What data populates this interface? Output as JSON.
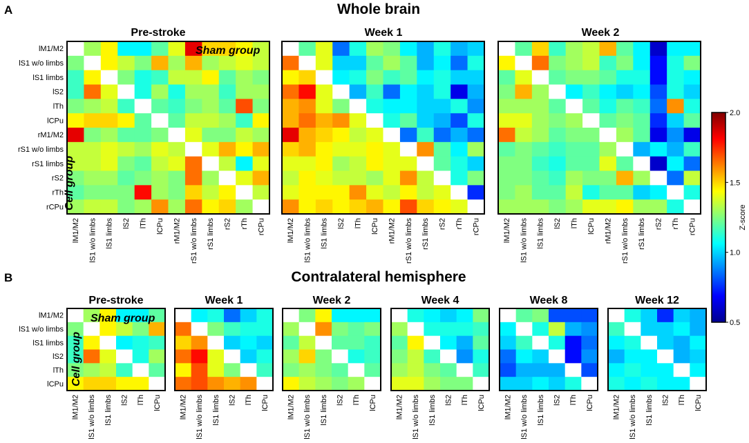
{
  "chart_data": {
    "type": "heatmap",
    "colorbar": {
      "label": "Z-score",
      "min": 0.5,
      "max": 2.0,
      "ticks": [
        "2.0",
        "1.5",
        "1.0",
        "0.5"
      ]
    },
    "panel_a": {
      "letter": "A",
      "title": "Whole brain",
      "row_labels": [
        "lM1/M2",
        "lS1 w/o limbs",
        "lS1 limbs",
        "lS2",
        "lTh",
        "lCPu",
        "rM1/M2",
        "rS1 w/o limbs",
        "rS1 limbs",
        "rS2",
        "rTh",
        "rCPu"
      ],
      "col_labels": [
        "lM1/M2",
        "lS1 w/o limbs",
        "lS1 limbs",
        "lS2",
        "lTh",
        "lCPu",
        "rM1/M2",
        "rS1 w/o limbs",
        "rS1 limbs",
        "rS2",
        "rTh",
        "rCPu"
      ],
      "sham_label": "Sham group",
      "cell_label": "Cell group",
      "matrices": [
        {
          "title": "Pre-stroke",
          "values": [
            [
              null,
              1.3,
              1.45,
              1.05,
              1.05,
              1.2,
              1.4,
              1.85,
              1.5,
              1.5,
              1.45,
              1.35
            ],
            [
              1.25,
              null,
              1.45,
              1.35,
              1.25,
              1.55,
              1.3,
              1.55,
              1.3,
              1.35,
              1.4,
              1.35
            ],
            [
              1.15,
              1.45,
              null,
              1.25,
              1.1,
              1.15,
              1.35,
              1.35,
              1.45,
              1.2,
              1.3,
              1.25
            ],
            [
              1.15,
              1.65,
              1.4,
              null,
              1.1,
              1.3,
              1.1,
              1.3,
              1.3,
              1.15,
              1.3,
              1.3
            ],
            [
              1.25,
              1.3,
              1.35,
              1.15,
              null,
              1.2,
              1.15,
              1.25,
              1.3,
              1.2,
              1.7,
              1.25
            ],
            [
              1.45,
              1.5,
              1.5,
              1.45,
              1.2,
              null,
              1.2,
              1.35,
              1.35,
              1.3,
              1.15,
              1.45
            ],
            [
              1.85,
              1.25,
              1.3,
              1.2,
              1.2,
              1.25,
              null,
              1.4,
              1.25,
              1.25,
              1.35,
              1.3
            ],
            [
              1.35,
              1.35,
              1.4,
              1.35,
              1.3,
              1.4,
              1.35,
              null,
              1.4,
              1.55,
              1.45,
              1.55
            ],
            [
              1.35,
              1.35,
              1.4,
              1.25,
              1.2,
              1.35,
              1.4,
              1.65,
              null,
              1.35,
              1.05,
              1.4
            ],
            [
              1.25,
              1.3,
              1.3,
              1.2,
              1.25,
              1.3,
              1.25,
              1.65,
              1.3,
              null,
              1.4,
              1.55
            ],
            [
              1.2,
              1.25,
              1.25,
              1.25,
              1.8,
              1.3,
              1.25,
              1.5,
              1.35,
              1.45,
              null,
              1.35
            ],
            [
              1.3,
              1.35,
              1.35,
              1.25,
              1.3,
              1.6,
              1.3,
              1.65,
              1.45,
              1.5,
              1.3,
              null
            ]
          ]
        },
        {
          "title": "Week 1",
          "values": [
            [
              null,
              1.2,
              1.4,
              0.85,
              1.1,
              1.3,
              1.25,
              1.05,
              0.95,
              1.1,
              0.95,
              1.0
            ],
            [
              1.65,
              null,
              1.4,
              1.0,
              1.0,
              1.2,
              1.3,
              1.2,
              0.95,
              1.05,
              0.85,
              1.1
            ],
            [
              1.45,
              1.5,
              null,
              1.05,
              1.1,
              1.25,
              1.15,
              1.2,
              1.05,
              1.1,
              1.0,
              1.0
            ],
            [
              1.65,
              1.8,
              1.4,
              null,
              0.95,
              1.15,
              0.85,
              1.05,
              1.0,
              1.1,
              0.65,
              0.95
            ],
            [
              1.55,
              1.6,
              1.4,
              1.25,
              null,
              1.1,
              1.05,
              1.05,
              1.0,
              1.0,
              1.1,
              0.9
            ],
            [
              1.55,
              1.65,
              1.55,
              1.6,
              1.4,
              null,
              1.1,
              1.2,
              1.0,
              0.95,
              0.8,
              1.1
            ],
            [
              1.85,
              1.55,
              1.5,
              1.45,
              1.35,
              1.4,
              null,
              0.85,
              1.15,
              0.85,
              0.95,
              0.85
            ],
            [
              1.5,
              1.55,
              1.45,
              1.4,
              1.4,
              1.45,
              1.4,
              null,
              1.6,
              1.2,
              1.05,
              1.3
            ],
            [
              1.4,
              1.4,
              1.45,
              1.3,
              1.35,
              1.45,
              1.4,
              1.4,
              null,
              1.2,
              1.1,
              1.0
            ],
            [
              1.35,
              1.45,
              1.4,
              1.35,
              1.35,
              1.3,
              1.4,
              1.6,
              1.35,
              null,
              1.1,
              1.25
            ],
            [
              1.4,
              1.45,
              1.45,
              1.45,
              1.6,
              1.4,
              1.35,
              1.45,
              1.35,
              1.4,
              null,
              0.75
            ],
            [
              1.6,
              1.45,
              1.5,
              1.45,
              1.5,
              1.55,
              1.45,
              1.7,
              1.5,
              1.45,
              1.4,
              null
            ]
          ]
        },
        {
          "title": "Week 2",
          "values": [
            [
              null,
              1.2,
              1.5,
              1.15,
              1.3,
              1.35,
              1.55,
              1.2,
              1.05,
              0.6,
              1.05,
              1.05
            ],
            [
              1.45,
              null,
              1.65,
              1.25,
              1.3,
              1.35,
              1.15,
              1.25,
              1.05,
              0.7,
              1.1,
              1.25
            ],
            [
              1.2,
              1.4,
              null,
              1.2,
              1.25,
              1.25,
              1.2,
              1.1,
              1.1,
              0.7,
              1.1,
              1.05
            ],
            [
              1.25,
              1.55,
              1.3,
              null,
              1.05,
              1.15,
              1.05,
              1.0,
              1.05,
              0.8,
              1.1,
              1.0
            ],
            [
              1.3,
              1.3,
              1.3,
              1.2,
              null,
              1.2,
              1.1,
              1.2,
              1.15,
              0.85,
              1.6,
              1.1
            ],
            [
              1.4,
              1.4,
              1.3,
              1.25,
              1.3,
              null,
              1.2,
              1.25,
              1.2,
              0.75,
              1.0,
              1.2
            ],
            [
              1.65,
              1.35,
              1.3,
              1.2,
              1.25,
              1.25,
              null,
              1.3,
              1.2,
              0.65,
              0.9,
              0.65
            ],
            [
              1.2,
              1.25,
              1.2,
              1.15,
              1.2,
              1.2,
              1.3,
              null,
              0.95,
              1.05,
              0.95,
              1.15
            ],
            [
              1.25,
              1.25,
              1.15,
              1.1,
              1.2,
              1.2,
              1.4,
              1.2,
              null,
              0.6,
              1.05,
              0.85
            ],
            [
              1.25,
              1.25,
              1.2,
              1.15,
              1.3,
              1.25,
              1.25,
              1.55,
              1.3,
              null,
              0.85,
              1.35
            ],
            [
              1.25,
              1.3,
              1.2,
              1.2,
              1.35,
              1.1,
              1.2,
              1.2,
              1.0,
              1.05,
              null,
              1.1
            ],
            [
              1.3,
              1.3,
              1.3,
              1.25,
              1.3,
              1.4,
              1.4,
              1.45,
              1.3,
              1.3,
              1.1,
              null
            ]
          ]
        }
      ]
    },
    "panel_b": {
      "letter": "B",
      "title": "Contralateral hemisphere",
      "row_labels": [
        "lM1/M2",
        "lS1 w/o limbs",
        "lS1 limbs",
        "lS2",
        "lTh",
        "lCPu"
      ],
      "col_labels": [
        "lM1/M2",
        "lS1 w/o limbs",
        "lS1 limbs",
        "lS2",
        "lTh",
        "lCPu"
      ],
      "sham_label": "Sham group",
      "cell_label": "Cell group",
      "matrices": [
        {
          "title": "Pre-stroke",
          "values": [
            [
              null,
              1.3,
              1.45,
              1.05,
              1.05,
              1.2
            ],
            [
              1.25,
              null,
              1.45,
              1.35,
              1.25,
              1.55
            ],
            [
              1.15,
              1.45,
              null,
              1.05,
              1.1,
              1.15
            ],
            [
              1.15,
              1.65,
              1.4,
              null,
              1.1,
              1.3
            ],
            [
              1.25,
              1.3,
              1.35,
              1.15,
              null,
              1.2
            ],
            [
              1.45,
              1.5,
              1.5,
              1.45,
              1.45,
              null
            ]
          ]
        },
        {
          "title": "Week 1",
          "values": [
            [
              null,
              1.05,
              1.1,
              0.85,
              1.0,
              1.1
            ],
            [
              1.65,
              null,
              1.25,
              1.15,
              1.1,
              1.1
            ],
            [
              1.5,
              1.6,
              null,
              1.0,
              1.05,
              1.0
            ],
            [
              1.65,
              1.8,
              1.4,
              null,
              1.0,
              1.1
            ],
            [
              1.45,
              1.7,
              1.4,
              1.25,
              null,
              1.15
            ],
            [
              1.65,
              1.7,
              1.6,
              1.55,
              1.6,
              null
            ]
          ]
        },
        {
          "title": "Week 2",
          "values": [
            [
              null,
              1.25,
              1.45,
              1.05,
              1.05,
              1.05
            ],
            [
              1.3,
              null,
              1.6,
              1.25,
              1.2,
              1.25
            ],
            [
              1.2,
              1.35,
              null,
              1.2,
              1.2,
              1.15
            ],
            [
              1.3,
              1.5,
              1.25,
              null,
              1.1,
              1.15
            ],
            [
              1.25,
              1.3,
              1.25,
              1.2,
              null,
              1.2
            ],
            [
              1.45,
              1.35,
              1.3,
              1.25,
              1.3,
              null
            ]
          ]
        },
        {
          "title": "Week 4",
          "values": [
            [
              null,
              1.1,
              1.05,
              1.0,
              1.05,
              1.25
            ],
            [
              1.3,
              null,
              1.1,
              1.1,
              1.1,
              1.15
            ],
            [
              1.2,
              1.45,
              null,
              1.05,
              0.95,
              1.2
            ],
            [
              1.25,
              1.35,
              1.15,
              null,
              0.9,
              1.1
            ],
            [
              1.3,
              1.35,
              1.25,
              1.2,
              null,
              1.15
            ],
            [
              1.4,
              1.4,
              1.3,
              1.25,
              1.25,
              null
            ]
          ]
        },
        {
          "title": "Week 8",
          "values": [
            [
              null,
              1.2,
              1.25,
              0.8,
              0.8,
              0.8
            ],
            [
              1.05,
              null,
              1.1,
              1.35,
              0.95,
              0.9
            ],
            [
              1.0,
              1.15,
              null,
              1.1,
              0.7,
              0.85
            ],
            [
              0.85,
              1.05,
              1.0,
              null,
              0.7,
              0.9
            ],
            [
              0.8,
              0.95,
              0.95,
              0.95,
              null,
              0.8
            ],
            [
              1.0,
              1.0,
              1.05,
              1.0,
              1.1,
              null
            ]
          ]
        },
        {
          "title": "Week 12",
          "values": [
            [
              null,
              1.1,
              1.0,
              0.75,
              1.0,
              0.95
            ],
            [
              1.15,
              null,
              1.0,
              1.0,
              1.05,
              0.95
            ],
            [
              1.05,
              1.1,
              null,
              1.0,
              0.95,
              1.05
            ],
            [
              0.95,
              1.05,
              1.05,
              null,
              0.95,
              1.0
            ],
            [
              1.05,
              1.1,
              1.05,
              1.05,
              null,
              1.05
            ],
            [
              1.1,
              1.05,
              1.1,
              1.05,
              1.05,
              null
            ]
          ]
        }
      ]
    }
  }
}
